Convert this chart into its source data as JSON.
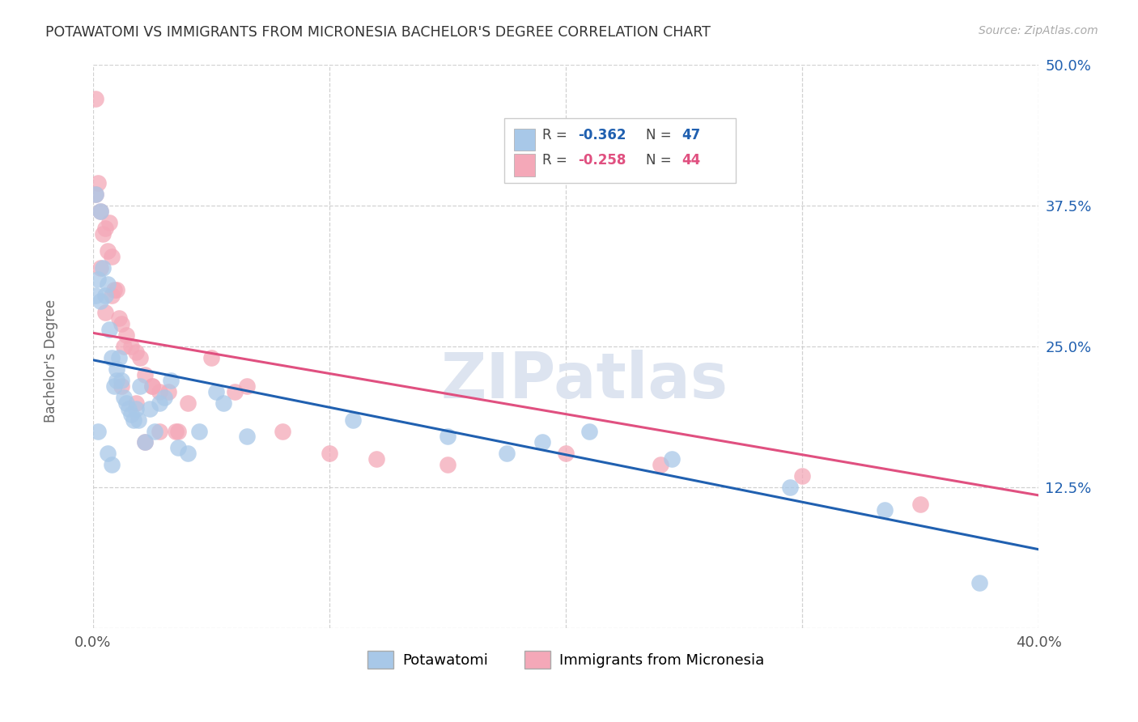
{
  "title": "POTAWATOMI VS IMMIGRANTS FROM MICRONESIA BACHELOR'S DEGREE CORRELATION CHART",
  "source": "Source: ZipAtlas.com",
  "ylabel": "Bachelor's Degree",
  "xlim": [
    0.0,
    0.4
  ],
  "ylim": [
    0.0,
    0.5
  ],
  "xticks": [
    0.0,
    0.1,
    0.2,
    0.3,
    0.4
  ],
  "yticks": [
    0.0,
    0.125,
    0.25,
    0.375,
    0.5
  ],
  "xticklabels": [
    "0.0%",
    "",
    "",
    "",
    "40.0%"
  ],
  "yticklabels": [
    "",
    "12.5%",
    "25.0%",
    "37.5%",
    "50.0%"
  ],
  "legend_R_blue": "-0.362",
  "legend_N_blue": "47",
  "legend_R_pink": "-0.258",
  "legend_N_pink": "44",
  "legend_label_blue": "Potawatomi",
  "legend_label_pink": "Immigrants from Micronesia",
  "color_blue": "#a8c8e8",
  "color_pink": "#f4a8b8",
  "line_color_blue": "#2060b0",
  "line_color_pink": "#e05080",
  "text_color_blue": "#2060b0",
  "text_color_pink": "#e05080",
  "background_color": "#ffffff",
  "grid_color": "#cccccc",
  "blue_line_x0": 0.0,
  "blue_line_x1": 0.4,
  "blue_line_y0": 0.238,
  "blue_line_y1": 0.07,
  "pink_line_x0": 0.0,
  "pink_line_x1": 0.4,
  "pink_line_y0": 0.262,
  "pink_line_y1": 0.118,
  "potawatomi_x": [
    0.001,
    0.002,
    0.003,
    0.003,
    0.004,
    0.005,
    0.006,
    0.007,
    0.008,
    0.009,
    0.01,
    0.01,
    0.011,
    0.012,
    0.013,
    0.014,
    0.015,
    0.016,
    0.017,
    0.018,
    0.019,
    0.02,
    0.022,
    0.024,
    0.026,
    0.028,
    0.03,
    0.033,
    0.036,
    0.04,
    0.045,
    0.055,
    0.065,
    0.11,
    0.15,
    0.175,
    0.21,
    0.245,
    0.295,
    0.335,
    0.375,
    0.001,
    0.002,
    0.006,
    0.008,
    0.052,
    0.19
  ],
  "potawatomi_y": [
    0.385,
    0.31,
    0.29,
    0.37,
    0.32,
    0.295,
    0.305,
    0.265,
    0.24,
    0.215,
    0.23,
    0.22,
    0.24,
    0.22,
    0.205,
    0.2,
    0.195,
    0.19,
    0.185,
    0.195,
    0.185,
    0.215,
    0.165,
    0.195,
    0.175,
    0.2,
    0.205,
    0.22,
    0.16,
    0.155,
    0.175,
    0.2,
    0.17,
    0.185,
    0.17,
    0.155,
    0.175,
    0.15,
    0.125,
    0.105,
    0.04,
    0.295,
    0.175,
    0.155,
    0.145,
    0.21,
    0.165
  ],
  "micronesia_x": [
    0.001,
    0.002,
    0.003,
    0.004,
    0.005,
    0.006,
    0.007,
    0.008,
    0.009,
    0.01,
    0.011,
    0.012,
    0.013,
    0.014,
    0.016,
    0.018,
    0.02,
    0.022,
    0.025,
    0.028,
    0.032,
    0.036,
    0.04,
    0.05,
    0.065,
    0.08,
    0.1,
    0.12,
    0.15,
    0.2,
    0.24,
    0.3,
    0.35,
    0.001,
    0.003,
    0.005,
    0.008,
    0.012,
    0.018,
    0.025,
    0.035,
    0.022,
    0.028,
    0.06
  ],
  "micronesia_y": [
    0.47,
    0.395,
    0.37,
    0.35,
    0.355,
    0.335,
    0.36,
    0.33,
    0.3,
    0.3,
    0.275,
    0.27,
    0.25,
    0.26,
    0.25,
    0.245,
    0.24,
    0.225,
    0.215,
    0.21,
    0.21,
    0.175,
    0.2,
    0.24,
    0.215,
    0.175,
    0.155,
    0.15,
    0.145,
    0.155,
    0.145,
    0.135,
    0.11,
    0.385,
    0.32,
    0.28,
    0.295,
    0.215,
    0.2,
    0.215,
    0.175,
    0.165,
    0.175,
    0.21
  ]
}
